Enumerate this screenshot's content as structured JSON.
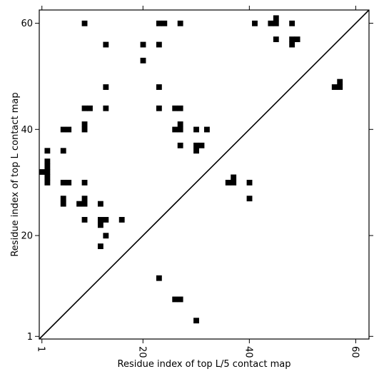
{
  "chart_data": {
    "type": "heatmap",
    "title": "",
    "xlabel": "Residue index of top L/5 contact map",
    "ylabel": "Residue index of top L contact map",
    "xlim": [
      0.5,
      62.5
    ],
    "ylim": [
      0.5,
      62.5
    ],
    "xticks": [
      1,
      20,
      40,
      60
    ],
    "xtick_labels": [
      "1",
      "20",
      "40",
      "60"
    ],
    "xtick_rotation": -90,
    "yticks": [
      1,
      20,
      40,
      60
    ],
    "ytick_labels": [
      "1",
      "20",
      "40",
      "60"
    ],
    "diagonal": {
      "from": [
        1,
        1
      ],
      "to": [
        62,
        62
      ]
    },
    "grid": false,
    "cell_color": "#000000",
    "background_color": "#ffffff",
    "cells": [
      [
        9,
        60
      ],
      [
        23,
        60
      ],
      [
        24,
        60
      ],
      [
        27,
        60
      ],
      [
        41,
        60
      ],
      [
        44,
        60
      ],
      [
        45,
        60
      ],
      [
        45,
        61
      ],
      [
        48,
        60
      ],
      [
        13,
        56
      ],
      [
        20,
        56
      ],
      [
        23,
        56
      ],
      [
        45,
        57
      ],
      [
        48,
        57
      ],
      [
        49,
        57
      ],
      [
        48,
        56
      ],
      [
        20,
        53
      ],
      [
        56,
        48
      ],
      [
        57,
        48
      ],
      [
        57,
        49
      ],
      [
        13,
        48
      ],
      [
        23,
        48
      ],
      [
        9,
        44
      ],
      [
        10,
        44
      ],
      [
        13,
        44
      ],
      [
        23,
        44
      ],
      [
        26,
        44
      ],
      [
        27,
        44
      ],
      [
        5,
        40
      ],
      [
        6,
        40
      ],
      [
        9,
        40
      ],
      [
        9,
        41
      ],
      [
        26,
        40
      ],
      [
        27,
        40
      ],
      [
        27,
        41
      ],
      [
        30,
        40
      ],
      [
        32,
        40
      ],
      [
        27,
        37
      ],
      [
        30,
        37
      ],
      [
        30,
        36
      ],
      [
        31,
        37
      ],
      [
        2,
        36
      ],
      [
        5,
        36
      ],
      [
        2,
        34
      ],
      [
        2,
        33
      ],
      [
        1,
        32
      ],
      [
        2,
        32
      ],
      [
        2,
        31
      ],
      [
        2,
        30
      ],
      [
        5,
        30
      ],
      [
        6,
        30
      ],
      [
        9,
        30
      ],
      [
        36,
        30
      ],
      [
        37,
        30
      ],
      [
        37,
        31
      ],
      [
        40,
        30
      ],
      [
        5,
        27
      ],
      [
        5,
        26
      ],
      [
        9,
        27
      ],
      [
        8,
        26
      ],
      [
        9,
        26
      ],
      [
        12,
        26
      ],
      [
        40,
        27
      ],
      [
        9,
        23
      ],
      [
        12,
        23
      ],
      [
        13,
        23
      ],
      [
        12,
        22
      ],
      [
        16,
        23
      ],
      [
        13,
        20
      ],
      [
        12,
        18
      ],
      [
        23,
        12
      ],
      [
        26,
        8
      ],
      [
        27,
        8
      ],
      [
        30,
        4
      ]
    ]
  }
}
